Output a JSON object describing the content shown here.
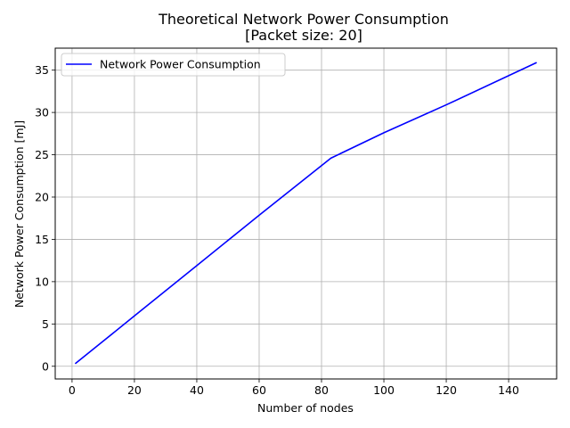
{
  "chart_data": {
    "type": "line",
    "title": "Theoretical Network Power Consumption",
    "subtitle": "[Packet size: 20]",
    "xlabel": "Number of nodes",
    "ylabel": "Network Power Consumption [mJ]",
    "xlim": [
      -5.4,
      155.4
    ],
    "ylim": [
      -1.5,
      37.6
    ],
    "xticks": [
      0,
      20,
      40,
      60,
      80,
      100,
      120,
      140
    ],
    "yticks": [
      0,
      5,
      10,
      15,
      20,
      25,
      30,
      35
    ],
    "grid": true,
    "legend_position": "top-left",
    "series": [
      {
        "name": "Network Power Consumption",
        "color": "#0000ff",
        "x": [
          1,
          20,
          40,
          60,
          83,
          100,
          120,
          149
        ],
        "y": [
          0.3,
          5.95,
          11.9,
          17.85,
          24.6,
          27.6,
          30.9,
          35.9
        ]
      }
    ]
  }
}
